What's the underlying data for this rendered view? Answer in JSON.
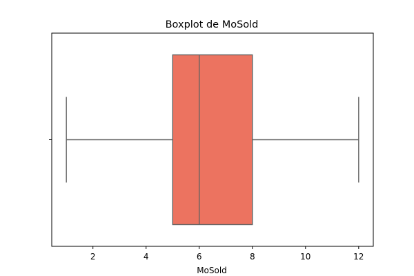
{
  "chart_data": {
    "type": "boxplot",
    "title": "Boxplot de MoSold",
    "xlabel": "MoSold",
    "ylabel": "",
    "xlim": [
      0.45,
      12.55
    ],
    "x_ticks": [
      2,
      4,
      6,
      8,
      10,
      12
    ],
    "orientation": "horizontal",
    "grid": false,
    "box": {
      "whisker_low": 1,
      "q1": 5,
      "median": 6,
      "q3": 8,
      "whisker_high": 12
    },
    "colors": {
      "box_fill": "#ec7360",
      "line": "#636363",
      "frame": "#000000"
    }
  }
}
